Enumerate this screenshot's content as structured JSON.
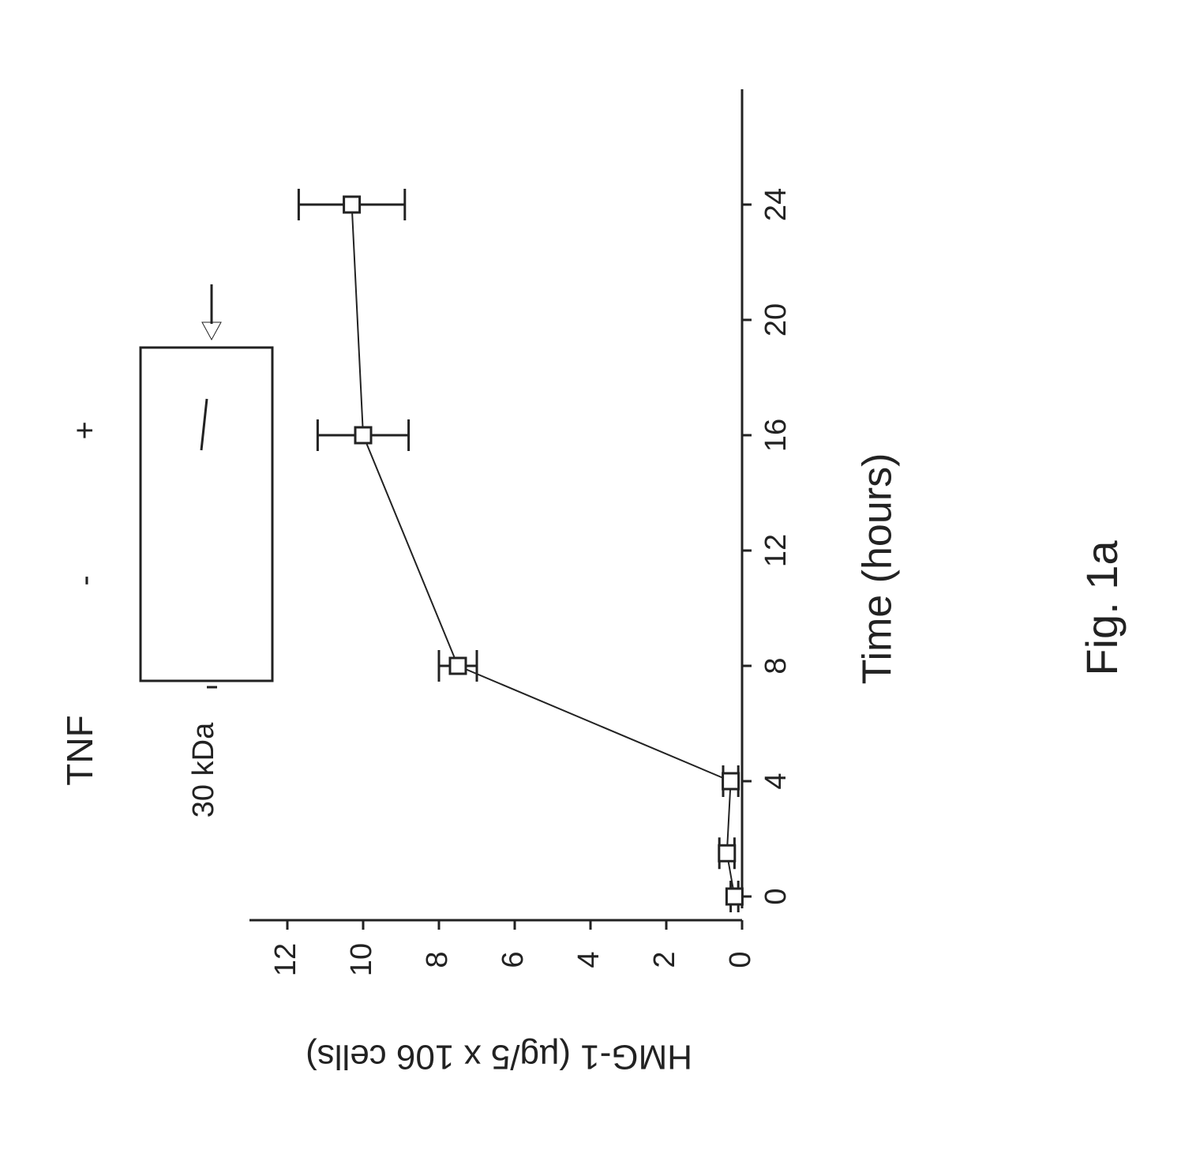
{
  "chart_data": {
    "type": "line",
    "x_label": "Time (hours)",
    "y_label": "HMG-1  (µg/5 x 106 cells)",
    "caption": "Fig. 1a",
    "inset": {
      "row_label": "TNF",
      "lanes": [
        "-",
        "+"
      ],
      "marker": "30 kDa"
    },
    "x": [
      0,
      1.5,
      4,
      8,
      16,
      24
    ],
    "series": [
      {
        "color": "#222222",
        "values": [
          0.2,
          0.4,
          0.3,
          7.5,
          10,
          10.3
        ],
        "errors": [
          0.1,
          0.2,
          0.2,
          0.5,
          1.2,
          1.4
        ]
      }
    ],
    "xlim": [
      0,
      28
    ],
    "xticks": [
      0,
      4,
      8,
      12,
      16,
      20,
      24
    ],
    "ylim": [
      0,
      13
    ],
    "yticks": [
      0,
      2,
      4,
      6,
      8,
      10,
      12
    ]
  }
}
